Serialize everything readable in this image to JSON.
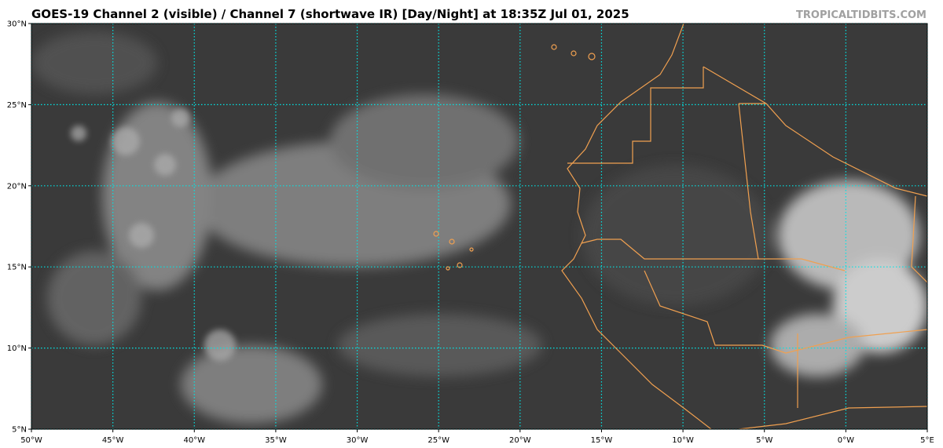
{
  "map": {
    "title": "GOES-19 Channel 2 (visible) / Channel 7 (shortwave IR) [Day/Night] at 18:35Z Jul 01, 2025",
    "watermark": "TROPICALTIDBITS.COM",
    "lonlim": [
      -50,
      5
    ],
    "latlim": [
      5,
      30
    ],
    "lon_ticks": [
      {
        "value": -50,
        "label": "50°W"
      },
      {
        "value": -45,
        "label": "45°W"
      },
      {
        "value": -40,
        "label": "40°W"
      },
      {
        "value": -35,
        "label": "35°W"
      },
      {
        "value": -30,
        "label": "30°W"
      },
      {
        "value": -25,
        "label": "25°W"
      },
      {
        "value": -20,
        "label": "20°W"
      },
      {
        "value": -15,
        "label": "15°W"
      },
      {
        "value": -10,
        "label": "10°W"
      },
      {
        "value": -5,
        "label": "5°W"
      },
      {
        "value": 0,
        "label": "0°W"
      },
      {
        "value": 5,
        "label": "5°E"
      }
    ],
    "lat_ticks": [
      {
        "value": 5,
        "label": "5°N"
      },
      {
        "value": 10,
        "label": "10°N"
      },
      {
        "value": 15,
        "label": "15°N"
      },
      {
        "value": 20,
        "label": "20°N"
      },
      {
        "value": 25,
        "label": "25°N"
      },
      {
        "value": 30,
        "label": "30°N"
      }
    ],
    "grid": true
  }
}
